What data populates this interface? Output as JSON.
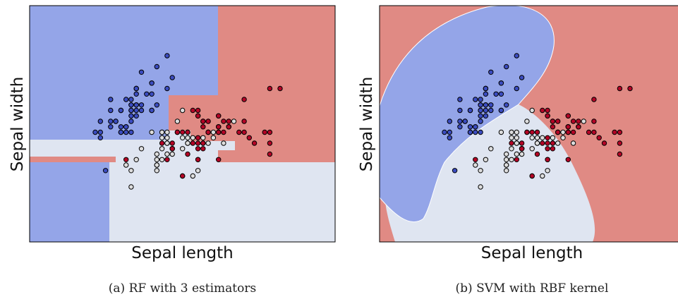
{
  "colors": {
    "class0": "#3b4cc0",
    "class1": "#dddddd",
    "class2": "#b40426",
    "region0": "#94a5e8",
    "region1": "#dfe5f1",
    "region2": "#e08a84"
  },
  "chart_data": [
    {
      "type": "scatter",
      "title": "",
      "subtitle": "(a) RF with 3 estimators",
      "xlabel": "Sepal length",
      "ylabel": "Sepal width",
      "grid": false,
      "legend": "none",
      "background": "decision regions",
      "series": [
        {
          "class_index": 0,
          "points": [
            [
              5.1,
              3.5
            ],
            [
              4.9,
              3.0
            ],
            [
              4.7,
              3.2
            ],
            [
              4.6,
              3.1
            ],
            [
              5.0,
              3.6
            ],
            [
              5.4,
              3.9
            ],
            [
              4.6,
              3.4
            ],
            [
              5.0,
              3.4
            ],
            [
              4.4,
              2.9
            ],
            [
              4.9,
              3.1
            ],
            [
              5.4,
              3.7
            ],
            [
              4.8,
              3.4
            ],
            [
              4.8,
              3.0
            ],
            [
              4.3,
              3.0
            ],
            [
              5.8,
              4.0
            ],
            [
              5.7,
              4.4
            ],
            [
              5.4,
              3.9
            ],
            [
              5.1,
              3.5
            ],
            [
              5.7,
              3.8
            ],
            [
              5.1,
              3.8
            ],
            [
              5.4,
              3.4
            ],
            [
              5.1,
              3.7
            ],
            [
              4.6,
              3.6
            ],
            [
              5.1,
              3.3
            ],
            [
              4.8,
              3.4
            ],
            [
              5.0,
              3.0
            ],
            [
              5.0,
              3.4
            ],
            [
              5.2,
              3.5
            ],
            [
              5.2,
              3.4
            ],
            [
              4.7,
              3.2
            ],
            [
              4.8,
              3.1
            ],
            [
              5.4,
              3.4
            ],
            [
              5.2,
              4.1
            ],
            [
              5.5,
              4.2
            ],
            [
              4.9,
              3.1
            ],
            [
              5.0,
              3.2
            ],
            [
              5.5,
              3.5
            ],
            [
              4.9,
              3.6
            ],
            [
              4.4,
              3.0
            ],
            [
              5.1,
              3.4
            ],
            [
              5.0,
              3.5
            ],
            [
              4.5,
              2.3
            ],
            [
              4.4,
              3.2
            ],
            [
              5.0,
              3.5
            ],
            [
              5.1,
              3.8
            ],
            [
              4.8,
              3.0
            ],
            [
              5.1,
              3.8
            ],
            [
              4.6,
              3.2
            ],
            [
              5.3,
              3.7
            ],
            [
              5.0,
              3.3
            ]
          ]
        },
        {
          "class_index": 1,
          "points": [
            [
              7.0,
              3.2
            ],
            [
              6.4,
              3.2
            ],
            [
              6.9,
              3.1
            ],
            [
              5.5,
              2.3
            ],
            [
              6.5,
              2.8
            ],
            [
              5.7,
              2.8
            ],
            [
              6.3,
              3.3
            ],
            [
              4.9,
              2.4
            ],
            [
              6.6,
              2.9
            ],
            [
              5.2,
              2.7
            ],
            [
              5.0,
              2.0
            ],
            [
              5.9,
              3.0
            ],
            [
              6.0,
              2.2
            ],
            [
              6.1,
              2.9
            ],
            [
              5.6,
              2.9
            ],
            [
              6.7,
              3.1
            ],
            [
              5.6,
              3.0
            ],
            [
              5.8,
              2.7
            ],
            [
              6.2,
              2.2
            ],
            [
              5.6,
              2.5
            ],
            [
              5.9,
              3.2
            ],
            [
              6.1,
              2.8
            ],
            [
              6.3,
              2.5
            ],
            [
              6.1,
              2.8
            ],
            [
              6.4,
              2.9
            ],
            [
              6.6,
              3.0
            ],
            [
              6.8,
              2.8
            ],
            [
              6.7,
              3.0
            ],
            [
              6.0,
              2.9
            ],
            [
              5.7,
              2.6
            ],
            [
              5.5,
              2.4
            ],
            [
              5.5,
              2.4
            ],
            [
              5.8,
              2.7
            ],
            [
              6.0,
              2.7
            ],
            [
              5.4,
              3.0
            ],
            [
              6.0,
              3.4
            ],
            [
              6.7,
              3.1
            ],
            [
              6.3,
              2.3
            ],
            [
              5.6,
              3.0
            ],
            [
              5.5,
              2.5
            ],
            [
              5.5,
              2.6
            ],
            [
              6.1,
              3.0
            ],
            [
              5.8,
              2.6
            ],
            [
              5.0,
              2.3
            ],
            [
              5.6,
              2.7
            ],
            [
              5.7,
              3.0
            ],
            [
              5.7,
              2.9
            ],
            [
              6.2,
              2.9
            ],
            [
              5.1,
              2.5
            ],
            [
              5.7,
              2.8
            ]
          ]
        },
        {
          "class_index": 2,
          "points": [
            [
              6.3,
              3.3
            ],
            [
              5.8,
              2.7
            ],
            [
              7.1,
              3.0
            ],
            [
              6.3,
              2.9
            ],
            [
              6.5,
              3.0
            ],
            [
              7.6,
              3.0
            ],
            [
              4.9,
              2.5
            ],
            [
              7.3,
              2.9
            ],
            [
              6.7,
              2.5
            ],
            [
              7.2,
              3.6
            ],
            [
              6.5,
              3.2
            ],
            [
              6.4,
              2.7
            ],
            [
              6.8,
              3.0
            ],
            [
              5.7,
              2.5
            ],
            [
              5.8,
              2.8
            ],
            [
              6.4,
              3.2
            ],
            [
              6.5,
              3.0
            ],
            [
              7.7,
              3.8
            ],
            [
              7.7,
              2.6
            ],
            [
              6.0,
              2.2
            ],
            [
              6.9,
              3.2
            ],
            [
              5.6,
              2.8
            ],
            [
              7.7,
              2.8
            ],
            [
              6.3,
              2.7
            ],
            [
              6.7,
              3.3
            ],
            [
              7.2,
              3.2
            ],
            [
              6.2,
              2.8
            ],
            [
              6.1,
              3.0
            ],
            [
              6.4,
              2.8
            ],
            [
              7.2,
              3.0
            ],
            [
              7.4,
              2.8
            ],
            [
              7.9,
              3.8
            ],
            [
              6.4,
              2.8
            ],
            [
              6.3,
              2.8
            ],
            [
              6.1,
              2.6
            ],
            [
              7.7,
              3.0
            ],
            [
              6.3,
              3.4
            ],
            [
              6.4,
              3.1
            ],
            [
              6.0,
              3.0
            ],
            [
              6.9,
              3.1
            ],
            [
              6.7,
              3.1
            ],
            [
              6.9,
              3.1
            ],
            [
              5.8,
              2.7
            ],
            [
              6.8,
              3.2
            ],
            [
              6.7,
              3.3
            ],
            [
              6.7,
              3.0
            ],
            [
              6.3,
              2.5
            ],
            [
              6.5,
              3.0
            ],
            [
              6.2,
              3.4
            ],
            [
              5.9,
              3.0
            ]
          ]
        }
      ]
    },
    {
      "type": "scatter",
      "title": "",
      "subtitle": "(b) SVM with RBF kernel",
      "xlabel": "Sepal length",
      "ylabel": "Sepal width",
      "grid": false,
      "legend": "none",
      "background": "decision regions",
      "series_same_as_panel": 0
    }
  ]
}
